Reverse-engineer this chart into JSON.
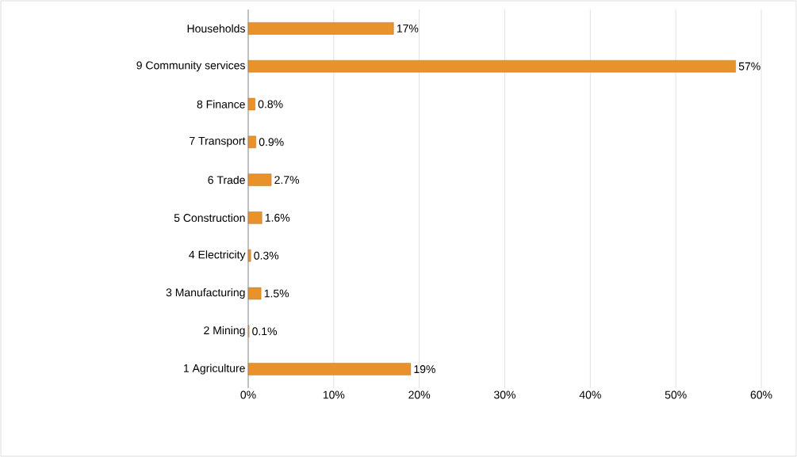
{
  "chart_data": {
    "type": "bar",
    "orientation": "horizontal",
    "categories": [
      "Households",
      "9 Community services",
      "8 Finance",
      "7 Transport",
      "6 Trade",
      "5 Construction",
      "4 Electricity",
      "3 Manufacturing",
      "2 Mining",
      "1 Agriculture"
    ],
    "values": [
      17,
      57,
      0.8,
      0.9,
      2.7,
      1.6,
      0.3,
      1.5,
      0.1,
      19
    ],
    "value_labels": [
      "17%",
      "57%",
      "0.8%",
      "0.9%",
      "2.7%",
      "1.6%",
      "0.3%",
      "1.5%",
      "0.1%",
      "19%"
    ],
    "color": "#e8922c",
    "xlim": [
      0,
      60
    ],
    "xticks": [
      {
        "value": 0,
        "label": "0%"
      },
      {
        "value": 10,
        "label": "10%"
      },
      {
        "value": 20,
        "label": "20%"
      },
      {
        "value": 30,
        "label": "30%"
      },
      {
        "value": 40,
        "label": "40%"
      },
      {
        "value": 50,
        "label": "50%"
      },
      {
        "value": 60,
        "label": "60%"
      }
    ],
    "grid": "x"
  }
}
